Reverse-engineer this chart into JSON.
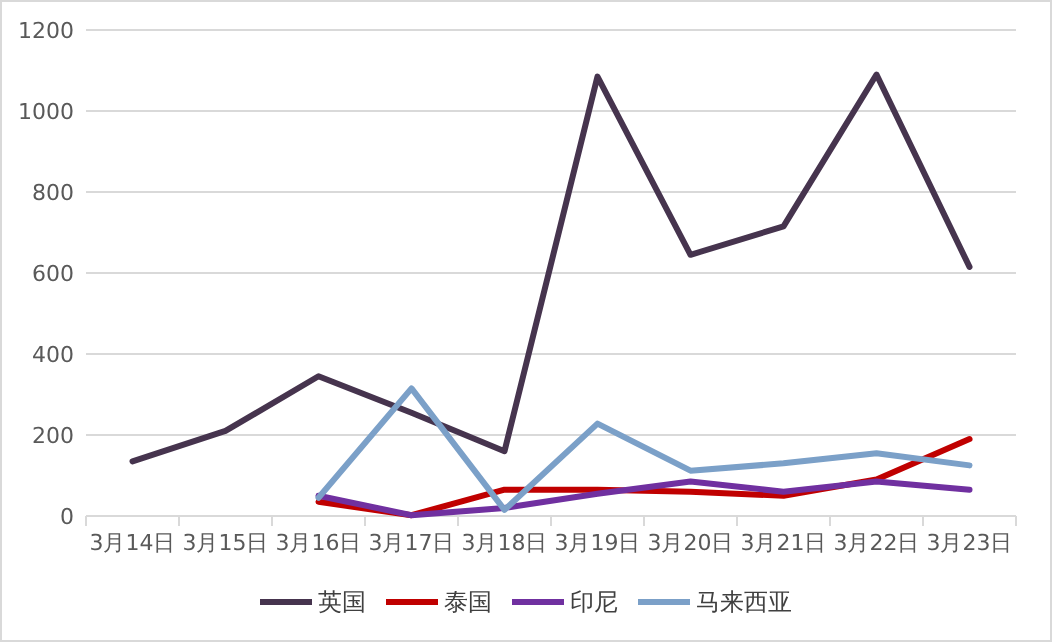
{
  "chart_data": {
    "type": "line",
    "categories": [
      "3月14日",
      "3月15日",
      "3月16日",
      "3月17日",
      "3月18日",
      "3月19日",
      "3月20日",
      "3月21日",
      "3月22日",
      "3月23日"
    ],
    "series": [
      {
        "name": "英国",
        "color": "#46344e",
        "values": [
          135,
          210,
          345,
          255,
          160,
          1085,
          645,
          715,
          1090,
          615
        ]
      },
      {
        "name": "泰国",
        "color": "#c00000",
        "values": [
          null,
          null,
          35,
          2,
          65,
          65,
          60,
          50,
          90,
          190
        ]
      },
      {
        "name": "印尼",
        "color": "#7030a0",
        "values": [
          null,
          null,
          50,
          2,
          20,
          55,
          85,
          60,
          85,
          65
        ]
      },
      {
        "name": "马来西亚",
        "color": "#7ba0c8",
        "values": [
          null,
          null,
          45,
          315,
          15,
          228,
          112,
          130,
          155,
          125
        ]
      }
    ],
    "ylim": [
      0,
      1200
    ],
    "yticks": [
      0,
      200,
      400,
      600,
      800,
      1000,
      1200
    ],
    "grid": "y",
    "legend": "bottom",
    "marker": "none",
    "line_style": "solid"
  }
}
